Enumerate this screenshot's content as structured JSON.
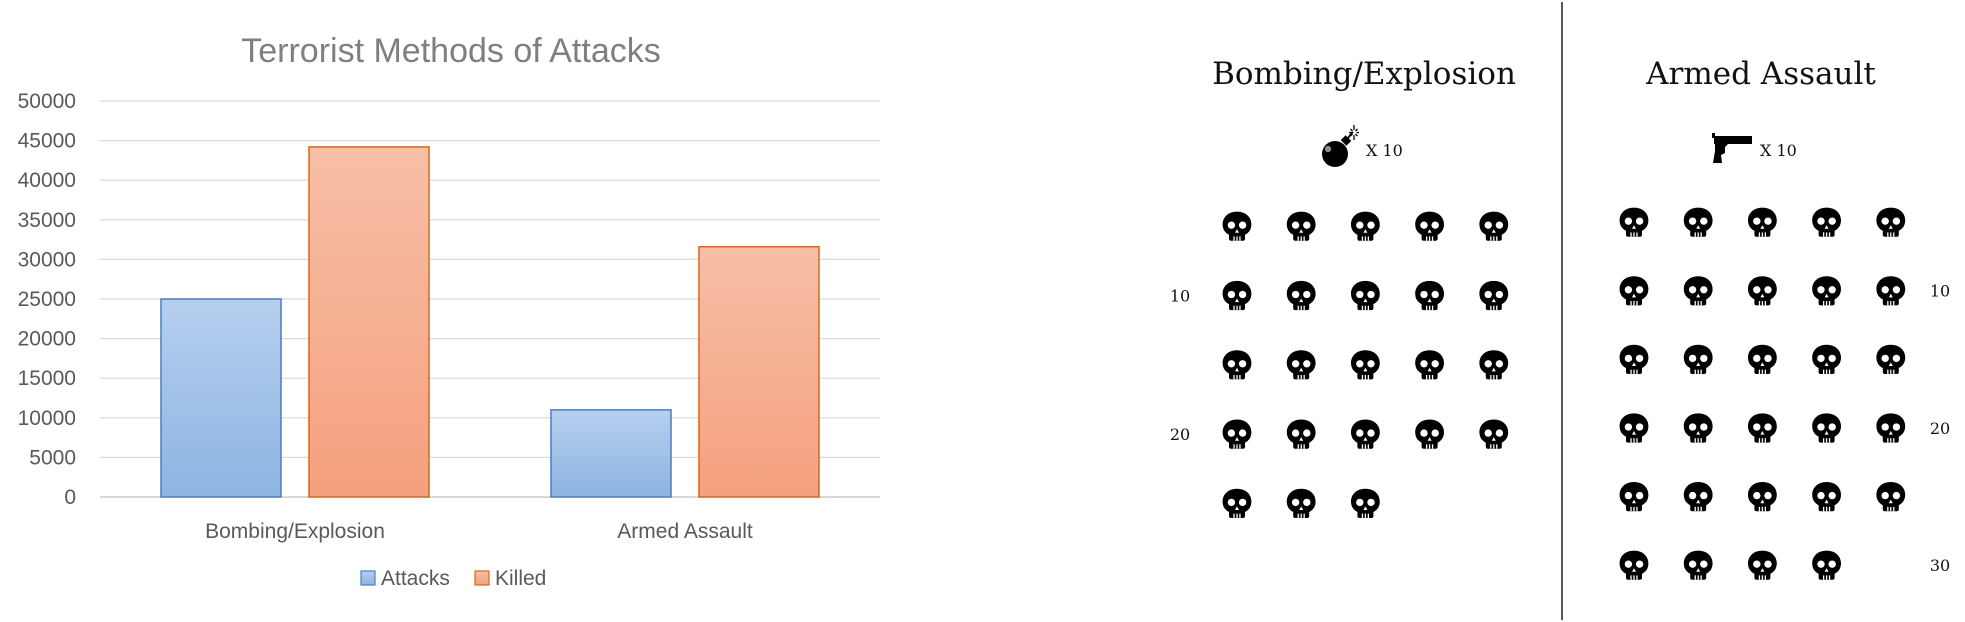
{
  "chart_data": {
    "type": "bar",
    "title": "Terrorist Methods of Attacks",
    "categories": [
      "Bombing/Explosion",
      "Armed Assault"
    ],
    "series": [
      {
        "name": "Attacks",
        "values": [
          25000,
          11000
        ]
      },
      {
        "name": "Killed",
        "values": [
          44200,
          31600
        ]
      }
    ],
    "ylim": [
      0,
      50000
    ],
    "yticks": [
      "0",
      "5000",
      "10000",
      "15000",
      "20000",
      "25000",
      "30000",
      "35000",
      "40000",
      "45000",
      "50000"
    ],
    "grid": true,
    "legend": "bottom",
    "colors": {
      "attacks_fill_top": "#b6cfee",
      "attacks_fill_bottom": "#8db4e2",
      "attacks_stroke": "#4a7ebb",
      "killed_fill_top": "#f7bfa7",
      "killed_fill_bottom": "#f5a07d",
      "killed_stroke": "#d8661c",
      "grid": "#d9d9d9"
    }
  },
  "pictograms": [
    {
      "title": "Bombing/Explosion",
      "icon": "bomb-icon",
      "multiplier_label": "X 10",
      "skull_count": 23,
      "row_labels": [
        {
          "row": 2,
          "text": "10"
        },
        {
          "row": 4,
          "text": "20"
        }
      ]
    },
    {
      "title": "Armed Assault",
      "icon": "gun-icon",
      "multiplier_label": "X 10",
      "skull_count": 29,
      "row_labels": [
        {
          "row": 2,
          "text": "10"
        },
        {
          "row": 4,
          "text": "20"
        },
        {
          "row": 6,
          "text": "30"
        }
      ]
    }
  ]
}
